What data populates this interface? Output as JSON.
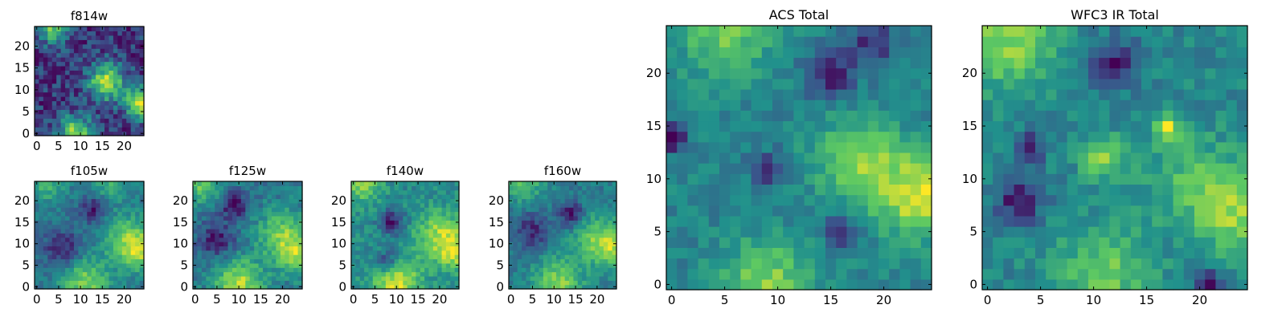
{
  "chart_data": [
    {
      "type": "heatmap",
      "title": "f814w",
      "grid_size": 25,
      "x_ticks": [
        0,
        5,
        10,
        15,
        20
      ],
      "y_ticks": [
        0,
        5,
        10,
        15,
        20
      ],
      "xlim": [
        0,
        24
      ],
      "ylim": [
        0,
        24
      ],
      "colormap": "viridis",
      "seed": 11,
      "hotspots": [
        {
          "x": 16,
          "y": 12,
          "radius": 3,
          "amp": 0.55
        },
        {
          "x": 24,
          "y": 7,
          "radius": 2.5,
          "amp": 0.6
        },
        {
          "x": 9,
          "y": 0,
          "radius": 3,
          "amp": 0.5
        },
        {
          "x": 4,
          "y": 24,
          "radius": 2.5,
          "amp": 0.45
        }
      ]
    },
    {
      "type": "heatmap",
      "title": "f105w",
      "grid_size": 25,
      "x_ticks": [
        0,
        5,
        10,
        15,
        20
      ],
      "y_ticks": [
        0,
        5,
        10,
        15,
        20
      ],
      "xlim": [
        0,
        24
      ],
      "ylim": [
        0,
        24
      ],
      "colormap": "viridis",
      "seed": 23,
      "hotspots": [
        {
          "x": 11,
          "y": 1,
          "radius": 4,
          "amp": 0.6
        },
        {
          "x": 21,
          "y": 11,
          "radius": 4,
          "amp": 0.55
        },
        {
          "x": 24,
          "y": 8,
          "radius": 3,
          "amp": 0.5
        },
        {
          "x": 2,
          "y": 24,
          "radius": 3,
          "amp": 0.4
        },
        {
          "x": 17,
          "y": 24,
          "radius": 3,
          "amp": 0.35
        },
        {
          "x": 13,
          "y": 18,
          "radius": 2,
          "amp": -0.5
        },
        {
          "x": 6,
          "y": 9,
          "radius": 3,
          "amp": -0.45
        }
      ]
    },
    {
      "type": "heatmap",
      "title": "f125w",
      "grid_size": 25,
      "x_ticks": [
        0,
        5,
        10,
        15,
        20
      ],
      "y_ticks": [
        0,
        5,
        10,
        15,
        20
      ],
      "xlim": [
        0,
        24
      ],
      "ylim": [
        0,
        24
      ],
      "colormap": "viridis",
      "seed": 37,
      "hotspots": [
        {
          "x": 10,
          "y": 1,
          "radius": 4,
          "amp": 0.6
        },
        {
          "x": 20,
          "y": 12,
          "radius": 4,
          "amp": 0.5
        },
        {
          "x": 24,
          "y": 7,
          "radius": 3,
          "amp": 0.5
        },
        {
          "x": 1,
          "y": 24,
          "radius": 3,
          "amp": 0.45
        },
        {
          "x": 9,
          "y": 19,
          "radius": 2,
          "amp": -0.5
        },
        {
          "x": 5,
          "y": 11,
          "radius": 3,
          "amp": -0.4
        }
      ]
    },
    {
      "type": "heatmap",
      "title": "f140w",
      "grid_size": 25,
      "x_ticks": [
        0,
        5,
        10,
        15,
        20
      ],
      "y_ticks": [
        0,
        5,
        10,
        15,
        20
      ],
      "xlim": [
        0,
        24
      ],
      "ylim": [
        0,
        24
      ],
      "colormap": "viridis",
      "seed": 51,
      "hotspots": [
        {
          "x": 10,
          "y": 1,
          "radius": 4,
          "amp": 0.6
        },
        {
          "x": 20,
          "y": 12,
          "radius": 4,
          "amp": 0.5
        },
        {
          "x": 24,
          "y": 8,
          "radius": 3,
          "amp": 0.45
        },
        {
          "x": 2,
          "y": 24,
          "radius": 3,
          "amp": 0.45
        },
        {
          "x": 9,
          "y": 15,
          "radius": 2,
          "amp": -0.55
        },
        {
          "x": 8,
          "y": 6,
          "radius": 2,
          "amp": -0.45
        }
      ]
    },
    {
      "type": "heatmap",
      "title": "f160w",
      "grid_size": 25,
      "x_ticks": [
        0,
        5,
        10,
        15,
        20
      ],
      "y_ticks": [
        0,
        5,
        10,
        15,
        20
      ],
      "xlim": [
        0,
        24
      ],
      "ylim": [
        0,
        24
      ],
      "colormap": "viridis",
      "seed": 67,
      "hotspots": [
        {
          "x": 11,
          "y": 1,
          "radius": 4,
          "amp": 0.6
        },
        {
          "x": 20,
          "y": 11,
          "radius": 4,
          "amp": 0.5
        },
        {
          "x": 24,
          "y": 9,
          "radius": 3,
          "amp": 0.45
        },
        {
          "x": 3,
          "y": 24,
          "radius": 3,
          "amp": 0.45
        },
        {
          "x": 14,
          "y": 17,
          "radius": 2,
          "amp": -0.55
        },
        {
          "x": 5,
          "y": 13,
          "radius": 3,
          "amp": -0.45
        }
      ]
    },
    {
      "type": "heatmap",
      "title": "ACS Total",
      "grid_size": 25,
      "x_ticks": [
        0,
        5,
        10,
        15,
        20
      ],
      "y_ticks": [
        0,
        5,
        10,
        15,
        20
      ],
      "xlim": [
        0,
        24
      ],
      "ylim": [
        0,
        24
      ],
      "colormap": "viridis",
      "seed": 83,
      "hotspots": [
        {
          "x": 24,
          "y": 8,
          "radius": 2.5,
          "amp": 0.6
        },
        {
          "x": 17,
          "y": 12,
          "radius": 2.5,
          "amp": 0.5
        },
        {
          "x": 9,
          "y": 0,
          "radius": 3,
          "amp": 0.55
        },
        {
          "x": 5,
          "y": 24,
          "radius": 3,
          "amp": 0.5
        },
        {
          "x": 21,
          "y": 10,
          "radius": 3,
          "amp": 0.35
        },
        {
          "x": 15,
          "y": 20,
          "radius": 1.5,
          "amp": -0.6
        },
        {
          "x": 0,
          "y": 14,
          "radius": 1,
          "amp": -0.7
        },
        {
          "x": 16,
          "y": 5,
          "radius": 1,
          "amp": -0.6
        },
        {
          "x": 9,
          "y": 11,
          "radius": 1,
          "amp": -0.6
        },
        {
          "x": 19,
          "y": 23,
          "radius": 1.5,
          "amp": -0.5
        }
      ]
    },
    {
      "type": "heatmap",
      "title": "WFC3 IR Total",
      "grid_size": 25,
      "x_ticks": [
        0,
        5,
        10,
        15,
        20
      ],
      "y_ticks": [
        0,
        5,
        10,
        15,
        20
      ],
      "xlim": [
        0,
        24
      ],
      "ylim": [
        0,
        24
      ],
      "colormap": "viridis",
      "seed": 97,
      "hotspots": [
        {
          "x": 2,
          "y": 23,
          "radius": 3,
          "amp": 0.55
        },
        {
          "x": 24,
          "y": 7,
          "radius": 3,
          "amp": 0.55
        },
        {
          "x": 11,
          "y": 12,
          "radius": 1.5,
          "amp": 0.5
        },
        {
          "x": 17,
          "y": 15,
          "radius": 1,
          "amp": 0.6
        },
        {
          "x": 11,
          "y": 1,
          "radius": 3,
          "amp": 0.45
        },
        {
          "x": 19,
          "y": 10,
          "radius": 3,
          "amp": 0.3
        },
        {
          "x": 12,
          "y": 21,
          "radius": 1.5,
          "amp": -0.55
        },
        {
          "x": 3,
          "y": 8,
          "radius": 1.5,
          "amp": -0.6
        },
        {
          "x": 21,
          "y": 0,
          "radius": 1,
          "amp": -0.6
        },
        {
          "x": 4,
          "y": 13,
          "radius": 1,
          "amp": -0.5
        }
      ]
    }
  ],
  "colors": {
    "viridis_stops": [
      "#440154",
      "#3b528b",
      "#21918c",
      "#5ec962",
      "#fde725"
    ],
    "axis_color": "#000000"
  }
}
